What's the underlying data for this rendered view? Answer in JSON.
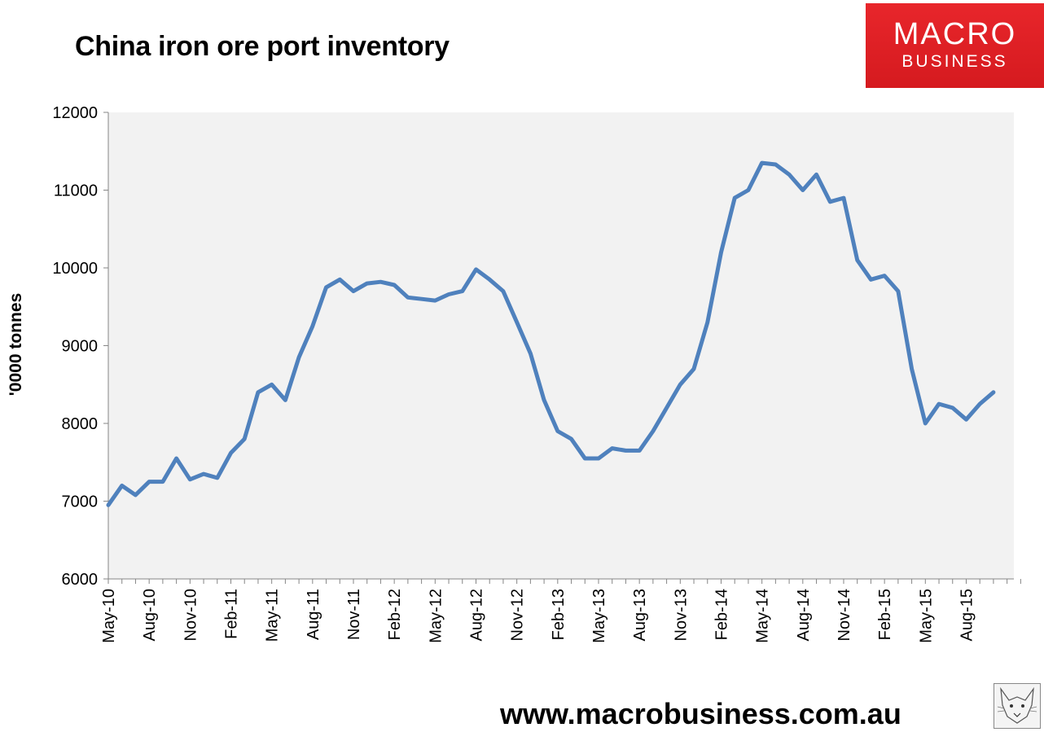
{
  "header": {
    "title": "China iron ore port inventory"
  },
  "logo": {
    "line1": "MACRO",
    "line2": "BUSINESS"
  },
  "footer": {
    "url": "www.macrobusiness.com.au"
  },
  "colors": {
    "series": "#4f81bd",
    "plot_bg": "#f2f2f2",
    "logo_bg": "#e0202a"
  },
  "icons": {
    "mascot": "fox-sketch-icon"
  },
  "chart_data": {
    "type": "line",
    "title": "China iron ore port inventory",
    "ylabel": "'0000 tonnes",
    "xlabel": "",
    "ylim": [
      6000,
      12000
    ],
    "yticks": [
      6000,
      7000,
      8000,
      9000,
      10000,
      11000,
      12000
    ],
    "xlim": [
      "2010-05",
      "2015-11"
    ],
    "xticks": [
      "May-10",
      "Aug-10",
      "Nov-10",
      "Feb-11",
      "May-11",
      "Aug-11",
      "Nov-11",
      "Feb-12",
      "May-12",
      "Aug-12",
      "Nov-12",
      "Feb-13",
      "May-13",
      "Aug-13",
      "Nov-13",
      "Feb-14",
      "May-14",
      "Aug-14",
      "Nov-14",
      "Feb-15",
      "May-15",
      "Aug-15"
    ],
    "grid": false,
    "legend": "none",
    "series": [
      {
        "x": [
          "2010-05",
          "2010-06",
          "2010-07",
          "2010-08",
          "2010-09",
          "2010-10",
          "2010-11",
          "2010-12",
          "2011-01",
          "2011-02",
          "2011-03",
          "2011-04",
          "2011-05",
          "2011-06",
          "2011-07",
          "2011-08",
          "2011-09",
          "2011-10",
          "2011-11",
          "2011-12",
          "2012-01",
          "2012-02",
          "2012-03",
          "2012-04",
          "2012-05",
          "2012-06",
          "2012-07",
          "2012-08",
          "2012-09",
          "2012-10",
          "2012-11",
          "2012-12",
          "2013-01",
          "2013-02",
          "2013-03",
          "2013-04",
          "2013-05",
          "2013-06",
          "2013-07",
          "2013-08",
          "2013-09",
          "2013-10",
          "2013-11",
          "2013-12",
          "2014-01",
          "2014-02",
          "2014-03",
          "2014-04",
          "2014-05",
          "2014-06",
          "2014-07",
          "2014-08",
          "2014-09",
          "2014-10",
          "2014-11",
          "2014-12",
          "2015-01",
          "2015-02",
          "2015-03",
          "2015-04",
          "2015-05",
          "2015-06",
          "2015-07",
          "2015-08",
          "2015-09",
          "2015-10"
        ],
        "values": [
          6950,
          7200,
          7080,
          7250,
          7250,
          7550,
          7280,
          7350,
          7300,
          7620,
          7800,
          8400,
          8500,
          8300,
          8850,
          9250,
          9750,
          9850,
          9700,
          9800,
          9820,
          9780,
          9620,
          9600,
          9580,
          9660,
          9700,
          9980,
          9850,
          9700,
          9300,
          8900,
          8300,
          7900,
          7800,
          7550,
          7550,
          7680,
          7650,
          7650,
          7900,
          8200,
          8500,
          8700,
          9300,
          10200,
          10900,
          11000,
          11350,
          11330,
          11200,
          11000,
          11200,
          10850,
          10900,
          10100,
          9850,
          9900,
          9700,
          8700,
          8000,
          8250,
          8200,
          8050,
          8250,
          8400
        ]
      }
    ]
  }
}
